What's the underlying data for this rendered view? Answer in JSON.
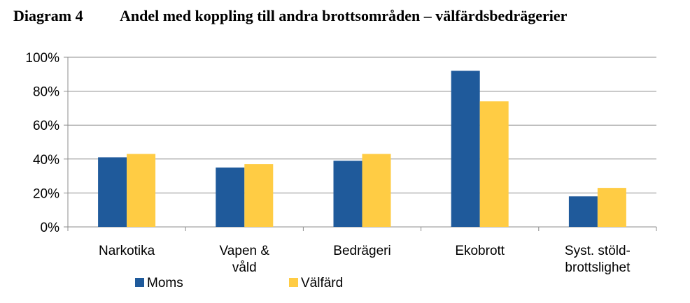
{
  "heading": {
    "number": "Diagram 4",
    "title": "Andel med koppling till andra brottsområden – välfärdsbedrägerier"
  },
  "colors": {
    "moms": "#1F5A9B",
    "valfard": "#FFCC44",
    "grid": "#8c8c8c"
  },
  "chart_data": {
    "type": "bar",
    "categories": [
      [
        "Narkotika"
      ],
      [
        "Vapen &",
        "våld"
      ],
      [
        "Bedrägeri"
      ],
      [
        "Ekobrott"
      ],
      [
        "Syst. stöld-",
        "brottslighet"
      ]
    ],
    "series": [
      {
        "name": "Moms",
        "values": [
          41,
          35,
          39,
          92,
          18
        ]
      },
      {
        "name": "Välfärd",
        "values": [
          43,
          37,
          43,
          74,
          23
        ]
      }
    ],
    "ylim": [
      0,
      100
    ],
    "yticks": [
      "0%",
      "20%",
      "40%",
      "60%",
      "80%",
      "100%"
    ],
    "grid": true,
    "legend": "bottom"
  }
}
